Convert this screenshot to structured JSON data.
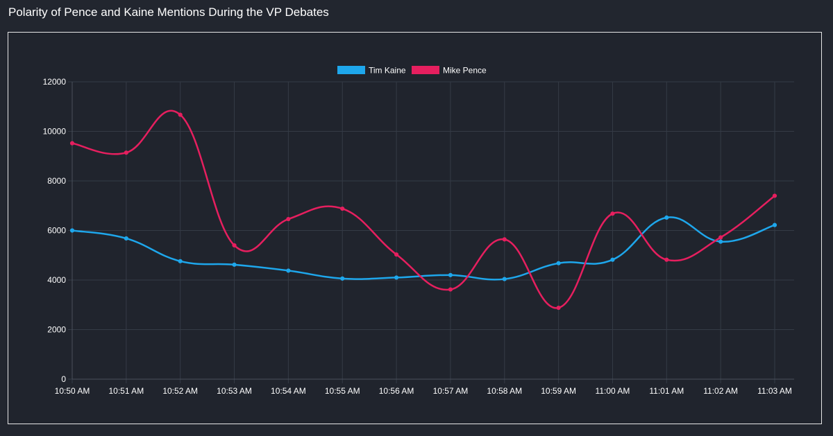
{
  "page": {
    "title": "Polarity of Pence and Kaine Mentions During the VP Debates"
  },
  "chart_data": {
    "type": "line",
    "title": "",
    "xlabel": "",
    "ylabel": "",
    "categories": [
      "10:50 AM",
      "10:51 AM",
      "10:52 AM",
      "10:53 AM",
      "10:54 AM",
      "10:55 AM",
      "10:56 AM",
      "10:57 AM",
      "10:58 AM",
      "10:59 AM",
      "11:00 AM",
      "11:01 AM",
      "11:02 AM",
      "11:03 AM"
    ],
    "ylim": [
      0,
      12000
    ],
    "yticks": [
      0,
      2000,
      4000,
      6000,
      8000,
      10000,
      12000
    ],
    "grid": true,
    "legend_position": "top-center",
    "series": [
      {
        "name": "Tim Kaine",
        "color": "#1ea7ec",
        "values": [
          6000,
          5680,
          4760,
          4620,
          4380,
          4060,
          4100,
          4200,
          4040,
          4680,
          4820,
          6520,
          5550,
          6220
        ]
      },
      {
        "name": "Mike Pence",
        "color": "#e61f5f",
        "values": [
          9520,
          9140,
          10670,
          5400,
          6460,
          6880,
          5030,
          3620,
          5640,
          2880,
          6680,
          4820,
          5720,
          7400
        ]
      }
    ]
  }
}
